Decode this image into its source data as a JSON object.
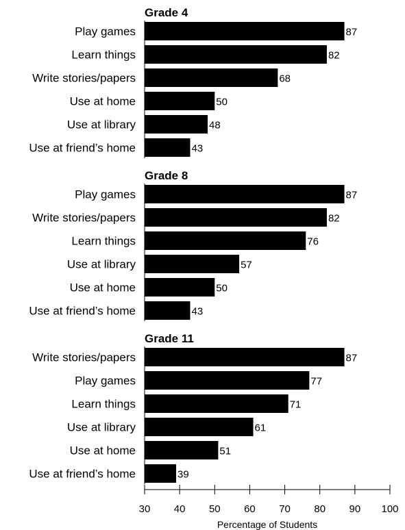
{
  "chart_data": {
    "type": "bar",
    "orientation": "horizontal",
    "xlabel": "Percentage of Students",
    "xlim": [
      30,
      100
    ],
    "x_ticks": [
      30,
      40,
      50,
      60,
      70,
      80,
      90,
      100
    ],
    "bar_color": "#000000",
    "grid": false,
    "panels": [
      {
        "title": "Grade 4",
        "categories": [
          "Play games",
          "Learn things",
          "Write stories/papers",
          "Use at home",
          "Use at library",
          "Use at friend’s home"
        ],
        "values": [
          87,
          82,
          68,
          50,
          48,
          43
        ]
      },
      {
        "title": "Grade 8",
        "categories": [
          "Play games",
          "Write stories/papers",
          "Learn things",
          "Use at library",
          "Use at home",
          "Use at friend’s home"
        ],
        "values": [
          87,
          82,
          76,
          57,
          50,
          43
        ]
      },
      {
        "title": "Grade 11",
        "categories": [
          "Write stories/papers",
          "Play games",
          "Learn things",
          "Use at library",
          "Use at home",
          "Use at friend’s home"
        ],
        "values": [
          87,
          77,
          71,
          61,
          51,
          39
        ]
      }
    ]
  }
}
